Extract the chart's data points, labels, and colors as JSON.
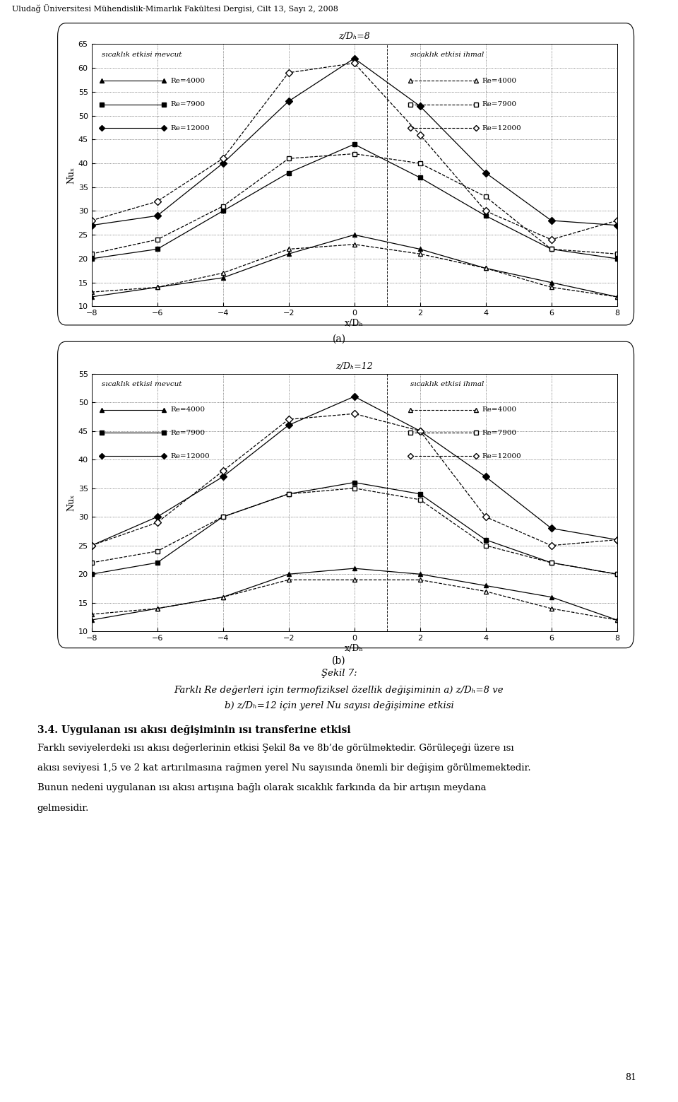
{
  "header": "Uludağ Üniversitesi Mühendislik-Mimarlık Fakültesi Dergisi, Cilt 13, Sayı 2, 2008",
  "fig_a": {
    "title": "z/Dₕ=8",
    "xlabel": "x/Dₕ",
    "ylabel": "Nuₓ",
    "xlim": [
      -8,
      8
    ],
    "ylim": [
      10,
      65
    ],
    "yticks": [
      10,
      15,
      20,
      25,
      30,
      35,
      40,
      45,
      50,
      55,
      60,
      65
    ],
    "xticks": [
      -8,
      -6,
      -4,
      -2,
      0,
      2,
      4,
      6,
      8
    ],
    "legend_left": "sıcaklık etkisi mevcut",
    "legend_right": "sıcaklık etkisi ihmal",
    "vline_x": 1,
    "series": {
      "mevcut_Re4000": {
        "x": [
          -8,
          -6,
          -4,
          -2,
          0,
          2,
          4,
          6,
          8
        ],
        "y": [
          12,
          14,
          16,
          21,
          25,
          22,
          18,
          15,
          12
        ]
      },
      "mevcut_Re7900": {
        "x": [
          -8,
          -6,
          -4,
          -2,
          0,
          2,
          4,
          6,
          8
        ],
        "y": [
          20,
          22,
          30,
          38,
          44,
          37,
          29,
          22,
          20
        ]
      },
      "mevcut_Re12000": {
        "x": [
          -8,
          -6,
          -4,
          -2,
          0,
          2,
          4,
          6,
          8
        ],
        "y": [
          27,
          29,
          40,
          53,
          62,
          52,
          38,
          28,
          27
        ]
      },
      "ihmal_Re4000": {
        "x": [
          -8,
          -6,
          -4,
          -2,
          0,
          2,
          4,
          6,
          8
        ],
        "y": [
          13,
          14,
          17,
          22,
          23,
          21,
          18,
          14,
          12
        ]
      },
      "ihmal_Re7900": {
        "x": [
          -8,
          -6,
          -4,
          -2,
          0,
          2,
          4,
          6,
          8
        ],
        "y": [
          21,
          24,
          31,
          41,
          42,
          40,
          33,
          22,
          21
        ]
      },
      "ihmal_Re12000": {
        "x": [
          -8,
          -6,
          -4,
          -2,
          0,
          2,
          4,
          6,
          8
        ],
        "y": [
          28,
          32,
          41,
          59,
          61,
          46,
          30,
          24,
          28
        ]
      }
    }
  },
  "fig_b": {
    "title": "z/Dₕ=12",
    "xlabel": "x/Dₕ",
    "ylabel": "Nuₓ",
    "xlim": [
      -8,
      8
    ],
    "ylim": [
      10,
      55
    ],
    "yticks": [
      10,
      15,
      20,
      25,
      30,
      35,
      40,
      45,
      50,
      55
    ],
    "xticks": [
      -8,
      -6,
      -4,
      -2,
      0,
      2,
      4,
      6,
      8
    ],
    "legend_left": "sıcaklık etkisi mevcut",
    "legend_right": "sıcaklık etkisi ihmal",
    "vline_x": 1,
    "series": {
      "mevcut_Re4000": {
        "x": [
          -8,
          -6,
          -4,
          -2,
          0,
          2,
          4,
          6,
          8
        ],
        "y": [
          12,
          14,
          16,
          20,
          21,
          20,
          18,
          16,
          12
        ]
      },
      "mevcut_Re7900": {
        "x": [
          -8,
          -6,
          -4,
          -2,
          0,
          2,
          4,
          6,
          8
        ],
        "y": [
          20,
          22,
          30,
          34,
          36,
          34,
          26,
          22,
          20
        ]
      },
      "mevcut_Re12000": {
        "x": [
          -8,
          -6,
          -4,
          -2,
          0,
          2,
          4,
          6,
          8
        ],
        "y": [
          25,
          30,
          37,
          46,
          51,
          45,
          37,
          28,
          26
        ]
      },
      "ihmal_Re4000": {
        "x": [
          -8,
          -6,
          -4,
          -2,
          0,
          2,
          4,
          6,
          8
        ],
        "y": [
          13,
          14,
          16,
          19,
          19,
          19,
          17,
          14,
          12
        ]
      },
      "ihmal_Re7900": {
        "x": [
          -8,
          -6,
          -4,
          -2,
          0,
          2,
          4,
          6,
          8
        ],
        "y": [
          22,
          24,
          30,
          34,
          35,
          33,
          25,
          22,
          20
        ]
      },
      "ihmal_Re12000": {
        "x": [
          -8,
          -6,
          -4,
          -2,
          0,
          2,
          4,
          6,
          8
        ],
        "y": [
          25,
          29,
          38,
          47,
          48,
          45,
          30,
          25,
          26
        ]
      }
    }
  },
  "caption_title": "Şekil 7:",
  "caption_line1": "Farklı Re değerleri için termofiziksel özellik değişiminin a) z/Dₕ=8 ve",
  "caption_line2": "b) z/Dₕ=12 için yerel Nu sayısı değişimine etkisi",
  "section_title": "3.4. Uygulanan ısı akısı değişiminin ısı transferine etkisi",
  "section_body": "Farklı seviyelerdeki ısı akısı değerlerinin etkisi Şekil 8a ve 8b’de görülmektedir. Görüleçeği üzere ısı akısı seviyesi 1,5 ve 2 kat artırılmasına rağmen yerel Nu sayısında önemli bir değişim görülmemektedir. Bunun nedeni uygulanan ısı akısı artışına bağlı olarak sıcaklık farkında da bir artışın meydana gelmesidir.",
  "page_number": "81"
}
